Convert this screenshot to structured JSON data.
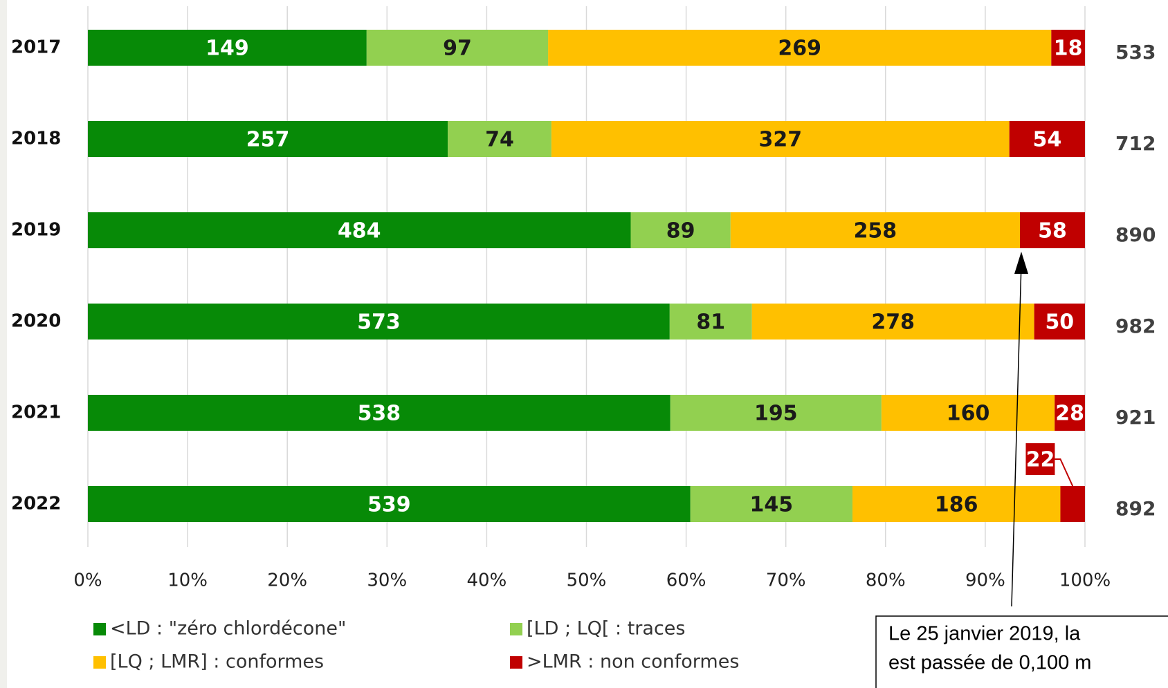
{
  "chart_data": {
    "type": "bar",
    "orientation": "horizontal",
    "stacking": "percent",
    "categories": [
      "2017",
      "2018",
      "2019",
      "2020",
      "2021",
      "2022"
    ],
    "series": [
      {
        "name": "<LD : \"zéro chlordécone\"",
        "color": "#078a07",
        "label_color": "#ffffff",
        "values": [
          149,
          257,
          484,
          573,
          538,
          539
        ]
      },
      {
        "name": "[LD ; LQ[ : traces",
        "color": "#92d050",
        "label_color": "#1a1a1a",
        "values": [
          97,
          74,
          89,
          81,
          195,
          145
        ]
      },
      {
        "name": "[LQ ; LMR] : conformes",
        "color": "#ffc000",
        "label_color": "#1a1a1a",
        "values": [
          269,
          327,
          258,
          278,
          160,
          186
        ]
      },
      {
        "name": ">LMR : non conformes",
        "color": "#c00000",
        "label_color": "#ffffff",
        "values": [
          18,
          54,
          58,
          50,
          28,
          22
        ]
      }
    ],
    "totals": [
      533,
      712,
      890,
      982,
      921,
      892
    ],
    "xlim": [
      0,
      100
    ],
    "xticks": [
      {
        "value": 0,
        "label": "0%"
      },
      {
        "value": 10,
        "label": "10%"
      },
      {
        "value": 20,
        "label": "20%"
      },
      {
        "value": 30,
        "label": "30%"
      },
      {
        "value": 40,
        "label": "40%"
      },
      {
        "value": 50,
        "label": "50%"
      },
      {
        "value": 60,
        "label": "60%"
      },
      {
        "value": 70,
        "label": "70%"
      },
      {
        "value": 80,
        "label": "80%"
      },
      {
        "value": 90,
        "label": "90%"
      },
      {
        "value": 100,
        "label": "100%"
      }
    ],
    "grid": true,
    "legend": "bottom",
    "annotation": {
      "lines": [
        "Le 25 janvier 2019, la",
        "est passée de 0,100 m"
      ]
    }
  }
}
